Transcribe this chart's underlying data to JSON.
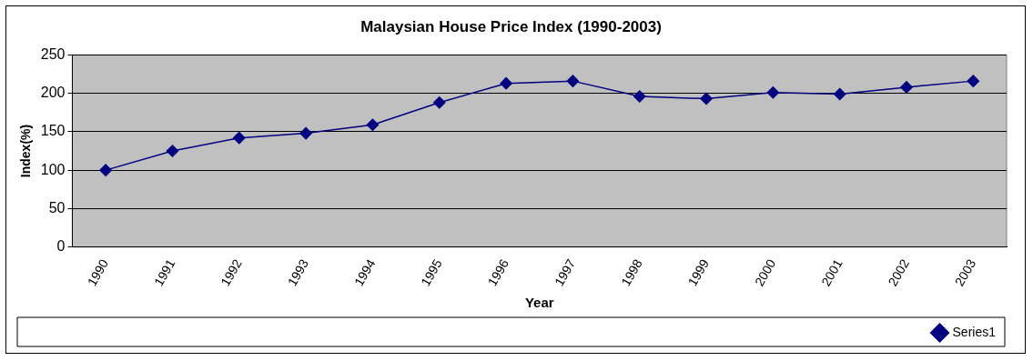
{
  "chart_data": {
    "type": "line",
    "title": "Malaysian House Price Index (1990-2003)",
    "xlabel": "Year",
    "ylabel": "Index(%)",
    "categories": [
      "1990",
      "1991",
      "1992",
      "1993",
      "1994",
      "1995",
      "1996",
      "1997",
      "1998",
      "1999",
      "2000",
      "2001",
      "2002",
      "2003"
    ],
    "series": [
      {
        "name": "Series1",
        "color": "#000080",
        "values": [
          100,
          125,
          142,
          148,
          159,
          188,
          213,
          216,
          196,
          193,
          201,
          199,
          208,
          216
        ]
      }
    ],
    "ylim": [
      0,
      250
    ],
    "yticks": [
      0,
      50,
      100,
      150,
      200,
      250
    ],
    "grid": "y",
    "legend": "bottom right",
    "marker": "diamond",
    "line_style": "solid"
  }
}
